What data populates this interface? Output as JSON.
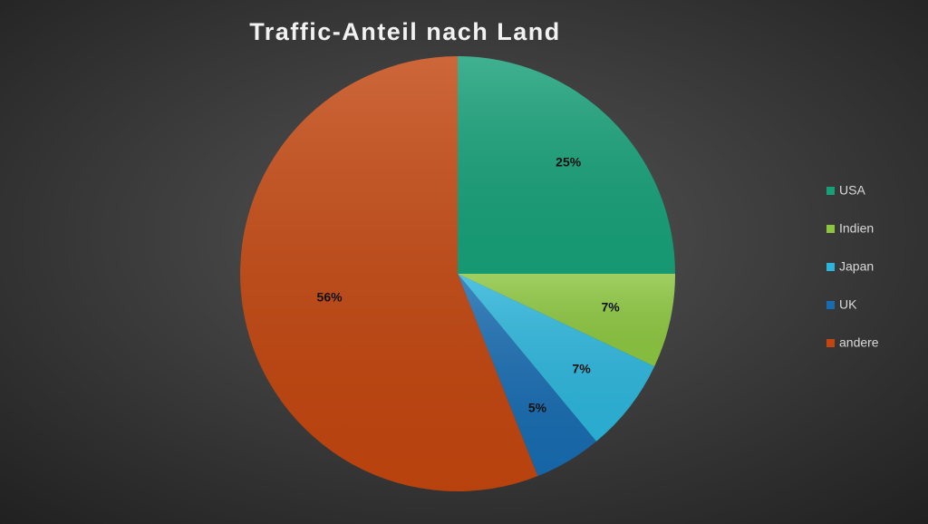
{
  "chart_data": {
    "type": "pie",
    "title": "Traffic-Anteil nach Land",
    "categories": [
      "USA",
      "Indien",
      "Japan",
      "UK",
      "andere"
    ],
    "values": [
      25,
      7,
      7,
      5,
      56
    ],
    "value_labels": [
      "25%",
      "7%",
      "7%",
      "5%",
      "56%"
    ],
    "colors": [
      "#17a078",
      "#8cc640",
      "#2cb5db",
      "#176bb0",
      "#c2460f"
    ],
    "legend": "right"
  }
}
